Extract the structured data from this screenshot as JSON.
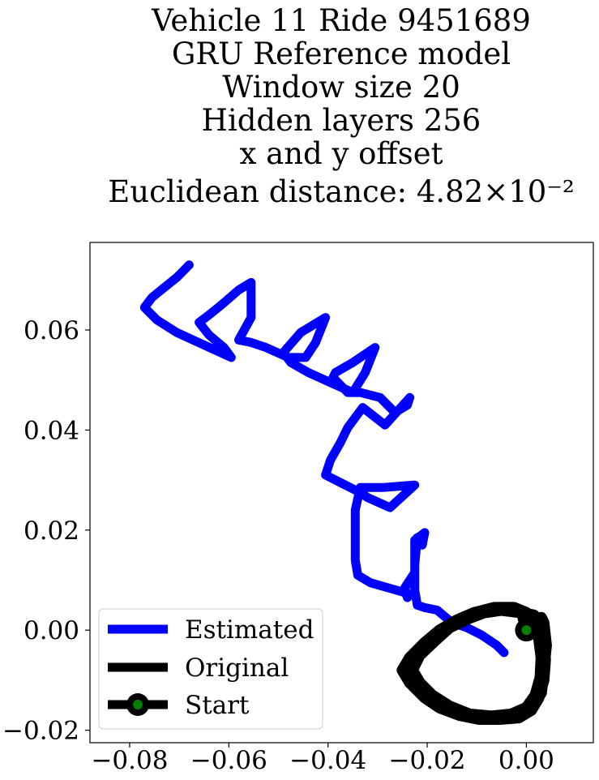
{
  "chart_data": {
    "type": "line",
    "title_lines": [
      "Vehicle 11 Ride 9451689",
      "GRU Reference model",
      "Window size 20",
      "Hidden layers 256",
      "x and y offset",
      "Euclidean distance: 4.82×10⁻²"
    ],
    "xlabel": "",
    "ylabel": "",
    "xlim": [
      -0.088,
      0.0135
    ],
    "ylim": [
      -0.0225,
      0.0775
    ],
    "x_ticks": [
      -0.08,
      -0.06,
      -0.04,
      -0.02,
      0.0
    ],
    "x_tick_labels": [
      "−0.08",
      "−0.06",
      "−0.04",
      "−0.02",
      "0.00"
    ],
    "y_ticks": [
      -0.02,
      0.0,
      0.02,
      0.04,
      0.06
    ],
    "y_tick_labels": [
      "−0.02",
      "0.00",
      "0.02",
      "0.04",
      "0.06"
    ],
    "grid": false,
    "legend_position": "lower-left",
    "colors": {
      "estimated": "#0000ff",
      "original": "#000000",
      "start_marker": "#008000"
    },
    "series": [
      {
        "name": "Estimated",
        "points": [
          [
            -0.0045,
            -0.0045
          ],
          [
            -0.006,
            -0.003
          ],
          [
            -0.009,
            -0.001
          ],
          [
            -0.012,
            0.0005
          ],
          [
            -0.015,
            0.0015
          ],
          [
            -0.018,
            0.004
          ],
          [
            -0.0205,
            0.0045
          ],
          [
            -0.022,
            0.005
          ],
          [
            -0.0225,
            0.008
          ],
          [
            -0.0225,
            0.013
          ],
          [
            -0.022,
            0.0185
          ],
          [
            -0.021,
            0.017
          ],
          [
            -0.0205,
            0.0195
          ],
          [
            -0.0225,
            0.018
          ],
          [
            -0.0225,
            0.0115
          ],
          [
            -0.0245,
            0.0085
          ],
          [
            -0.024,
            0.0065
          ],
          [
            -0.0245,
            0.008
          ],
          [
            -0.0245,
            0.0075
          ],
          [
            -0.0315,
            0.0095
          ],
          [
            -0.034,
            0.011
          ],
          [
            -0.0345,
            0.014
          ],
          [
            -0.0345,
            0.017
          ],
          [
            -0.0345,
            0.024
          ],
          [
            -0.0335,
            0.0285
          ],
          [
            -0.029,
            0.0285
          ],
          [
            -0.0225,
            0.029
          ],
          [
            -0.0275,
            0.0245
          ],
          [
            -0.032,
            0.0265
          ],
          [
            -0.0335,
            0.0275
          ],
          [
            -0.0375,
            0.0295
          ],
          [
            -0.0405,
            0.031
          ],
          [
            -0.0395,
            0.034
          ],
          [
            -0.0375,
            0.0375
          ],
          [
            -0.036,
            0.0405
          ],
          [
            -0.0345,
            0.0425
          ],
          [
            -0.033,
            0.0445
          ],
          [
            -0.0285,
            0.041
          ],
          [
            -0.0235,
            0.0465
          ],
          [
            -0.024,
            0.045
          ],
          [
            -0.0265,
            0.0435
          ],
          [
            -0.0295,
            0.0465
          ],
          [
            -0.0335,
            0.0475
          ],
          [
            -0.036,
            0.0475
          ],
          [
            -0.039,
            0.0505
          ],
          [
            -0.0385,
            0.0515
          ],
          [
            -0.035,
            0.0535
          ],
          [
            -0.0305,
            0.0565
          ],
          [
            -0.0325,
            0.0515
          ],
          [
            -0.035,
            0.0475
          ],
          [
            -0.0395,
            0.0495
          ],
          [
            -0.044,
            0.0515
          ],
          [
            -0.0475,
            0.0535
          ],
          [
            -0.049,
            0.0555
          ],
          [
            -0.0455,
            0.0595
          ],
          [
            -0.0405,
            0.0625
          ],
          [
            -0.0425,
            0.0575
          ],
          [
            -0.0445,
            0.0545
          ],
          [
            -0.048,
            0.0545
          ],
          [
            -0.0525,
            0.0565
          ],
          [
            -0.0555,
            0.0575
          ],
          [
            -0.058,
            0.058
          ],
          [
            -0.0555,
            0.0625
          ],
          [
            -0.0555,
            0.0695
          ],
          [
            -0.058,
            0.068
          ],
          [
            -0.0615,
            0.065
          ],
          [
            -0.064,
            0.063
          ],
          [
            -0.066,
            0.0615
          ],
          [
            -0.064,
            0.059
          ],
          [
            -0.061,
            0.0565
          ],
          [
            -0.0595,
            0.0545
          ],
          [
            -0.065,
            0.057
          ],
          [
            -0.0705,
            0.0595
          ],
          [
            -0.0745,
            0.062
          ],
          [
            -0.077,
            0.0645
          ],
          [
            -0.0755,
            0.0665
          ],
          [
            -0.073,
            0.0685
          ],
          [
            -0.0705,
            0.0705
          ],
          [
            -0.068,
            0.073
          ]
        ]
      },
      {
        "name": "Original",
        "points": [
          [
            0.0,
            0.0
          ],
          [
            0.002,
            0.0015
          ],
          [
            0.003,
            0.0025
          ],
          [
            0.0035,
            0.0015
          ],
          [
            0.004,
            -0.003
          ],
          [
            0.0035,
            -0.008
          ],
          [
            0.003,
            -0.0125
          ],
          [
            0.0015,
            -0.015
          ],
          [
            -0.001,
            -0.0165
          ],
          [
            -0.0045,
            -0.017
          ],
          [
            -0.009,
            -0.0175
          ],
          [
            -0.0125,
            -0.0165
          ],
          [
            -0.0165,
            -0.0155
          ],
          [
            -0.0195,
            -0.0135
          ],
          [
            -0.022,
            -0.0115
          ],
          [
            -0.024,
            -0.009
          ],
          [
            -0.0235,
            -0.0065
          ],
          [
            -0.022,
            -0.004
          ],
          [
            -0.0185,
            -0.001
          ],
          [
            -0.015,
            0.001
          ],
          [
            -0.012,
            0.0025
          ],
          [
            -0.0085,
            0.0035
          ],
          [
            -0.005,
            0.004
          ],
          [
            -0.001,
            0.0035
          ],
          [
            0.0015,
            0.003
          ],
          [
            0.0025,
            0.002
          ],
          [
            0.0035,
            -0.001
          ],
          [
            0.0038,
            -0.006
          ],
          [
            0.0035,
            -0.01
          ],
          [
            0.0025,
            -0.0135
          ],
          [
            0.001,
            -0.016
          ],
          [
            -0.0015,
            -0.0175
          ],
          [
            -0.0055,
            -0.0178
          ],
          [
            -0.0095,
            -0.0178
          ],
          [
            -0.0135,
            -0.017
          ],
          [
            -0.0175,
            -0.0155
          ],
          [
            -0.0205,
            -0.0135
          ],
          [
            -0.0235,
            -0.0105
          ],
          [
            -0.025,
            -0.008
          ],
          [
            -0.0235,
            -0.0055
          ],
          [
            -0.0205,
            -0.0025
          ],
          [
            -0.0175,
            0.0
          ],
          [
            -0.014,
            0.002
          ],
          [
            -0.0105,
            0.0035
          ],
          [
            -0.0065,
            0.0045
          ],
          [
            -0.0025,
            0.0045
          ],
          [
            0.0,
            0.0035
          ],
          [
            0.0015,
            0.0015
          ],
          [
            0.0025,
            -0.0015
          ],
          [
            0.003,
            -0.0055
          ],
          [
            0.0028,
            -0.0095
          ],
          [
            0.0018,
            -0.013
          ],
          [
            0.0,
            -0.0155
          ],
          [
            -0.003,
            -0.0168
          ],
          [
            -0.007,
            -0.0172
          ],
          [
            -0.0115,
            -0.0168
          ],
          [
            -0.0155,
            -0.0152
          ],
          [
            -0.019,
            -0.013
          ],
          [
            -0.0215,
            -0.0105
          ],
          [
            -0.023,
            -0.008
          ],
          [
            -0.0215,
            -0.005
          ],
          [
            -0.0185,
            -0.0022
          ],
          [
            -0.0155,
            0.0005
          ],
          [
            -0.012,
            0.0022
          ],
          [
            -0.0085,
            0.0035
          ],
          [
            -0.0045,
            0.0042
          ],
          [
            -0.001,
            0.0038
          ],
          [
            0.0,
            0.0
          ]
        ]
      },
      {
        "name": "Start",
        "points": [
          [
            0.0,
            0.0
          ]
        ]
      }
    ]
  }
}
